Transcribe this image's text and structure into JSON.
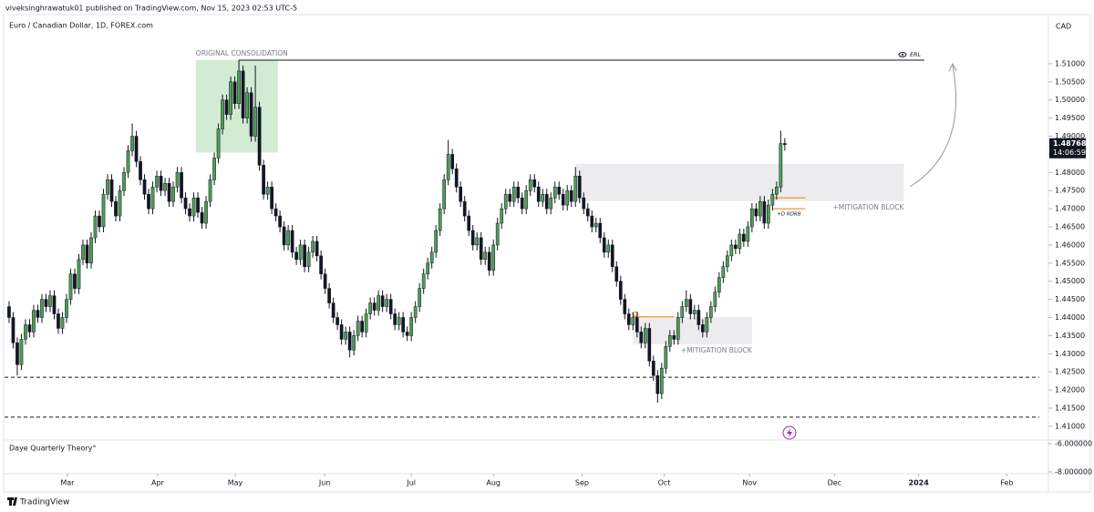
{
  "header": {
    "publisher": "viveksinghrawatuk01 published on TradingView.com, Nov 15, 2023 02:53 UTC-5"
  },
  "chart_data": {
    "type": "candlestick",
    "title": "Euro / Canadian Dollar, 1D, FOREX.com",
    "currency": "CAD",
    "up_color": "#4f9d57",
    "down_color": "#131722",
    "open": [
      1.443,
      1.44,
      1.433,
      1.427,
      1.434,
      1.438,
      1.436,
      1.442,
      1.44,
      1.445,
      1.443,
      1.446,
      1.441,
      1.437,
      1.44,
      1.445,
      1.452,
      1.448,
      1.456,
      1.46,
      1.455,
      1.462,
      1.468,
      1.465,
      1.474,
      1.478,
      1.472,
      1.468,
      1.475,
      1.48,
      1.486,
      1.49,
      1.483,
      1.478,
      1.474,
      1.47,
      1.476,
      1.479,
      1.475,
      1.477,
      1.472,
      1.476,
      1.48,
      1.473,
      1.47,
      1.468,
      1.473,
      1.469,
      1.466,
      1.472,
      1.478,
      1.484,
      1.492,
      1.5,
      1.496,
      1.505,
      1.499,
      1.508,
      1.495,
      1.502,
      1.49,
      1.498,
      1.482,
      1.474,
      1.476,
      1.47,
      1.468,
      1.465,
      1.46,
      1.464,
      1.458,
      1.456,
      1.46,
      1.454,
      1.458,
      1.461,
      1.457,
      1.452,
      1.448,
      1.444,
      1.44,
      1.438,
      1.434,
      1.436,
      1.431,
      1.435,
      1.439,
      1.436,
      1.441,
      1.444,
      1.442,
      1.446,
      1.443,
      1.445,
      1.441,
      1.438,
      1.44,
      1.436,
      1.435,
      1.44,
      1.443,
      1.448,
      1.452,
      1.455,
      1.458,
      1.464,
      1.47,
      1.478,
      1.485,
      1.481,
      1.476,
      1.472,
      1.468,
      1.464,
      1.46,
      1.462,
      1.456,
      1.458,
      1.453,
      1.46,
      1.466,
      1.47,
      1.474,
      1.472,
      1.476,
      1.473,
      1.47,
      1.475,
      1.478,
      1.476,
      1.472,
      1.474,
      1.47,
      1.473,
      1.476,
      1.474,
      1.471,
      1.475,
      1.472,
      1.479,
      1.473,
      1.47,
      1.468,
      1.465,
      1.466,
      1.462,
      1.458,
      1.46,
      1.454,
      1.45,
      1.445,
      1.441,
      1.438,
      1.44,
      1.436,
      1.433,
      1.437,
      1.428,
      1.424,
      1.419,
      1.426,
      1.432,
      1.435,
      1.434,
      1.44,
      1.443,
      1.445,
      1.441,
      1.442,
      1.438,
      1.436,
      1.44,
      1.443,
      1.447,
      1.451,
      1.454,
      1.457,
      1.46,
      1.459,
      1.463,
      1.461,
      1.465,
      1.47,
      1.468,
      1.472,
      1.466,
      1.471,
      1.474,
      1.476,
      1.488
    ],
    "high": [
      1.4445,
      1.4415,
      1.4345,
      1.4355,
      1.4395,
      1.4395,
      1.4435,
      1.4435,
      1.4465,
      1.4465,
      1.4475,
      1.4475,
      1.4425,
      1.4415,
      1.4465,
      1.4535,
      1.4535,
      1.4575,
      1.4615,
      1.4615,
      1.4635,
      1.4695,
      1.4695,
      1.4755,
      1.4795,
      1.4795,
      1.4735,
      1.4765,
      1.4815,
      1.4875,
      1.4935,
      1.4915,
      1.4845,
      1.4795,
      1.4755,
      1.4775,
      1.4805,
      1.4805,
      1.4785,
      1.4785,
      1.4775,
      1.4815,
      1.4815,
      1.4745,
      1.4715,
      1.4745,
      1.4745,
      1.4705,
      1.4735,
      1.4795,
      1.4855,
      1.4935,
      1.5015,
      1.5015,
      1.5065,
      1.5065,
      1.511,
      1.5095,
      1.5035,
      1.5035,
      1.5095,
      1.4995,
      1.4835,
      1.4775,
      1.4775,
      1.4715,
      1.4695,
      1.4665,
      1.4655,
      1.4655,
      1.4595,
      1.4615,
      1.4615,
      1.4595,
      1.4625,
      1.4625,
      1.4585,
      1.4535,
      1.4495,
      1.4455,
      1.4415,
      1.4395,
      1.4375,
      1.4375,
      1.4365,
      1.4405,
      1.4405,
      1.4425,
      1.4455,
      1.4455,
      1.4475,
      1.4475,
      1.4465,
      1.4465,
      1.4425,
      1.4415,
      1.4415,
      1.4375,
      1.4415,
      1.4445,
      1.4495,
      1.4535,
      1.4565,
      1.4595,
      1.4655,
      1.4715,
      1.4795,
      1.489,
      1.4865,
      1.4825,
      1.4775,
      1.4735,
      1.4695,
      1.4655,
      1.4635,
      1.4635,
      1.4595,
      1.4595,
      1.4615,
      1.4675,
      1.4715,
      1.4755,
      1.4755,
      1.4775,
      1.4775,
      1.4745,
      1.4765,
      1.4795,
      1.4795,
      1.4775,
      1.4755,
      1.4755,
      1.4745,
      1.4775,
      1.4775,
      1.4755,
      1.4765,
      1.4765,
      1.4815,
      1.4805,
      1.4745,
      1.4715,
      1.4695,
      1.4675,
      1.4675,
      1.4635,
      1.4615,
      1.4615,
      1.4555,
      1.4515,
      1.4465,
      1.4425,
      1.4415,
      1.4415,
      1.4375,
      1.4385,
      1.4385,
      1.4295,
      1.4255,
      1.4275,
      1.4335,
      1.4365,
      1.4365,
      1.4415,
      1.4445,
      1.4475,
      1.4465,
      1.4435,
      1.4435,
      1.4395,
      1.4415,
      1.4445,
      1.4485,
      1.4525,
      1.4555,
      1.4585,
      1.4615,
      1.4615,
      1.4645,
      1.4645,
      1.4665,
      1.4715,
      1.4715,
      1.4735,
      1.4735,
      1.4725,
      1.4755,
      1.4775,
      1.4915,
      1.4895
    ],
    "low": [
      1.4385,
      1.4315,
      1.424,
      1.4255,
      1.4325,
      1.4345,
      1.4345,
      1.4385,
      1.4385,
      1.4415,
      1.4415,
      1.4395,
      1.4355,
      1.4355,
      1.4385,
      1.4435,
      1.4465,
      1.4465,
      1.4545,
      1.4535,
      1.4535,
      1.4605,
      1.4635,
      1.4635,
      1.4725,
      1.4705,
      1.4665,
      1.4665,
      1.4735,
      1.4785,
      1.4845,
      1.4815,
      1.4765,
      1.4725,
      1.4685,
      1.4685,
      1.4745,
      1.4735,
      1.4735,
      1.4705,
      1.4705,
      1.4745,
      1.4715,
      1.4685,
      1.4665,
      1.4665,
      1.4675,
      1.4645,
      1.4645,
      1.4705,
      1.4765,
      1.4825,
      1.4905,
      1.4945,
      1.4945,
      1.4975,
      1.4975,
      1.4935,
      1.4935,
      1.4885,
      1.4885,
      1.4805,
      1.4725,
      1.4725,
      1.4685,
      1.4665,
      1.4635,
      1.4585,
      1.4585,
      1.4565,
      1.4545,
      1.4545,
      1.4525,
      1.4525,
      1.4565,
      1.4555,
      1.4505,
      1.4465,
      1.4425,
      1.4385,
      1.4365,
      1.4325,
      1.4325,
      1.429,
      1.4295,
      1.4335,
      1.4345,
      1.4345,
      1.4395,
      1.4405,
      1.4405,
      1.4415,
      1.4415,
      1.4395,
      1.4365,
      1.4365,
      1.4345,
      1.4335,
      1.4335,
      1.4385,
      1.4415,
      1.4465,
      1.4505,
      1.4535,
      1.4565,
      1.4625,
      1.4685,
      1.4765,
      1.4795,
      1.4745,
      1.4705,
      1.4665,
      1.4625,
      1.4585,
      1.4585,
      1.4545,
      1.4545,
      1.4515,
      1.4515,
      1.4585,
      1.4645,
      1.4685,
      1.4705,
      1.4705,
      1.4715,
      1.4685,
      1.4685,
      1.4735,
      1.4745,
      1.4705,
      1.4705,
      1.4685,
      1.4685,
      1.4715,
      1.4725,
      1.4695,
      1.4695,
      1.4705,
      1.4705,
      1.4715,
      1.4685,
      1.4665,
      1.4635,
      1.4635,
      1.4605,
      1.4565,
      1.4565,
      1.4525,
      1.4485,
      1.4435,
      1.4395,
      1.4365,
      1.4365,
      1.4345,
      1.4315,
      1.4315,
      1.4265,
      1.4225,
      1.4165,
      1.4175,
      1.4245,
      1.4305,
      1.4325,
      1.4325,
      1.4385,
      1.4415,
      1.4395,
      1.4395,
      1.4365,
      1.4345,
      1.4345,
      1.4385,
      1.4415,
      1.4455,
      1.4495,
      1.4525,
      1.4555,
      1.4575,
      1.4575,
      1.4595,
      1.4595,
      1.4635,
      1.4665,
      1.4665,
      1.4645,
      1.4645,
      1.4695,
      1.4725,
      1.4745,
      1.486
    ],
    "close": [
      1.44,
      1.433,
      1.427,
      1.434,
      1.438,
      1.436,
      1.442,
      1.44,
      1.445,
      1.443,
      1.446,
      1.441,
      1.437,
      1.44,
      1.445,
      1.452,
      1.448,
      1.456,
      1.46,
      1.455,
      1.462,
      1.468,
      1.465,
      1.474,
      1.478,
      1.472,
      1.468,
      1.475,
      1.48,
      1.486,
      1.49,
      1.483,
      1.478,
      1.474,
      1.47,
      1.476,
      1.479,
      1.475,
      1.477,
      1.472,
      1.476,
      1.48,
      1.473,
      1.47,
      1.468,
      1.473,
      1.469,
      1.466,
      1.472,
      1.478,
      1.484,
      1.492,
      1.5,
      1.496,
      1.505,
      1.499,
      1.508,
      1.495,
      1.502,
      1.49,
      1.498,
      1.482,
      1.474,
      1.476,
      1.47,
      1.468,
      1.465,
      1.46,
      1.464,
      1.458,
      1.456,
      1.46,
      1.454,
      1.458,
      1.461,
      1.457,
      1.452,
      1.448,
      1.444,
      1.44,
      1.438,
      1.434,
      1.436,
      1.431,
      1.435,
      1.439,
      1.436,
      1.441,
      1.444,
      1.442,
      1.446,
      1.443,
      1.445,
      1.441,
      1.438,
      1.44,
      1.436,
      1.435,
      1.44,
      1.443,
      1.448,
      1.452,
      1.455,
      1.458,
      1.464,
      1.47,
      1.478,
      1.485,
      1.481,
      1.476,
      1.472,
      1.468,
      1.464,
      1.46,
      1.462,
      1.456,
      1.458,
      1.453,
      1.46,
      1.466,
      1.47,
      1.474,
      1.472,
      1.476,
      1.473,
      1.47,
      1.475,
      1.478,
      1.476,
      1.472,
      1.474,
      1.47,
      1.473,
      1.476,
      1.474,
      1.471,
      1.475,
      1.472,
      1.479,
      1.473,
      1.47,
      1.468,
      1.465,
      1.466,
      1.462,
      1.458,
      1.46,
      1.454,
      1.45,
      1.445,
      1.441,
      1.438,
      1.44,
      1.436,
      1.433,
      1.437,
      1.428,
      1.424,
      1.419,
      1.426,
      1.432,
      1.435,
      1.434,
      1.44,
      1.443,
      1.445,
      1.441,
      1.442,
      1.438,
      1.436,
      1.44,
      1.443,
      1.447,
      1.451,
      1.454,
      1.457,
      1.46,
      1.459,
      1.463,
      1.461,
      1.465,
      1.47,
      1.468,
      1.472,
      1.466,
      1.471,
      1.474,
      1.476,
      1.488,
      1.48768
    ],
    "ylim": [
      1.4062,
      1.5233
    ],
    "yticks": [
      {
        "value": 1.41,
        "label": "1.41000"
      },
      {
        "value": 1.415,
        "label": "1.41500"
      },
      {
        "value": 1.42,
        "label": "1.42000"
      },
      {
        "value": 1.425,
        "label": "1.42500"
      },
      {
        "value": 1.43,
        "label": "1.43000"
      },
      {
        "value": 1.435,
        "label": "1.43500"
      },
      {
        "value": 1.44,
        "label": "1.44000"
      },
      {
        "value": 1.445,
        "label": "1.44500"
      },
      {
        "value": 1.45,
        "label": "1.45000"
      },
      {
        "value": 1.455,
        "label": "1.45500"
      },
      {
        "value": 1.46,
        "label": "1.46000"
      },
      {
        "value": 1.465,
        "label": "1.46500"
      },
      {
        "value": 1.47,
        "label": "1.47000"
      },
      {
        "value": 1.475,
        "label": "1.47500"
      },
      {
        "value": 1.48,
        "label": "1.48000"
      },
      {
        "value": 1.485,
        "label": "1.48500"
      },
      {
        "value": 1.49,
        "label": "1.49000"
      },
      {
        "value": 1.495,
        "label": "1.49500"
      },
      {
        "value": 1.5,
        "label": "1.50000"
      },
      {
        "value": 1.505,
        "label": "1.50500"
      },
      {
        "value": 1.51,
        "label": "1.51000"
      }
    ],
    "xlim": [
      -1.1,
      251
    ],
    "xticks": [
      {
        "value": 14.2,
        "label": "Mar"
      },
      {
        "value": 36.2,
        "label": "Apr"
      },
      {
        "value": 55.1,
        "label": "May"
      },
      {
        "value": 76.9,
        "label": "Jun"
      },
      {
        "value": 98,
        "label": "Jul"
      },
      {
        "value": 118,
        "label": "Aug"
      },
      {
        "value": 139.6,
        "label": "Sep"
      },
      {
        "value": 159.6,
        "label": "Oct"
      },
      {
        "value": 180.4,
        "label": "Nov"
      },
      {
        "value": 201.1,
        "label": "Dec"
      },
      {
        "value": 221.6,
        "label": "2024"
      },
      {
        "value": 243.1,
        "label": "Feb"
      }
    ],
    "last_price": {
      "value": 1.48768,
      "label": "1.48768"
    },
    "countdown": "14:06:59",
    "zones": [
      {
        "label": "ORIGINAL CONSOLIDATION",
        "x": [
          45.5,
          65.5
        ],
        "y": [
          1.4855,
          1.511
        ],
        "color": "rgba(76,175,80,0.25)",
        "label_corner": "top-left"
      },
      {
        "label": "+MITIGATION BLOCK",
        "x": [
          138,
          218
        ],
        "y": [
          1.4721,
          1.4824
        ],
        "color": "rgba(120,123,134,0.14)",
        "label_corner": "bottom-right"
      },
      {
        "label": "+MITIGATION BLOCK",
        "x": [
          152,
          181
        ],
        "y": [
          1.4326,
          1.4401
        ],
        "color": "rgba(120,123,134,0.14)",
        "label_corner": "bottom-right"
      }
    ],
    "levels": [
      {
        "label": "ERL",
        "value": 1.511,
        "x": [
          56,
          223
        ],
        "color": "#131722",
        "style": "solid",
        "label_position": "end"
      },
      {
        "value": 1.4235,
        "color": "#131722",
        "style": "dashed"
      },
      {
        "value": 1.4125,
        "color": "#131722",
        "style": "dashed"
      },
      {
        "value": 1.473,
        "x": [
          186,
          194
        ],
        "color": "#f57c00",
        "style": "solid"
      },
      {
        "label": "+D RDRB",
        "value": 1.47,
        "x": [
          186,
          194
        ],
        "color": "#f57c00",
        "style": "solid",
        "label_position": "below"
      },
      {
        "value": 1.4402,
        "x": [
          152,
          162
        ],
        "color": "#f57c00",
        "style": "solid",
        "marker": true
      }
    ],
    "indicator": {
      "name": "Daye Quarterly Theory°",
      "ylim": [
        -8.13,
        -5.74
      ],
      "yticks": [
        {
          "value": -6,
          "label": "-6.000000"
        },
        {
          "value": -8,
          "label": "-8.000000"
        }
      ]
    }
  },
  "footer": {
    "brand": "TradingView"
  }
}
